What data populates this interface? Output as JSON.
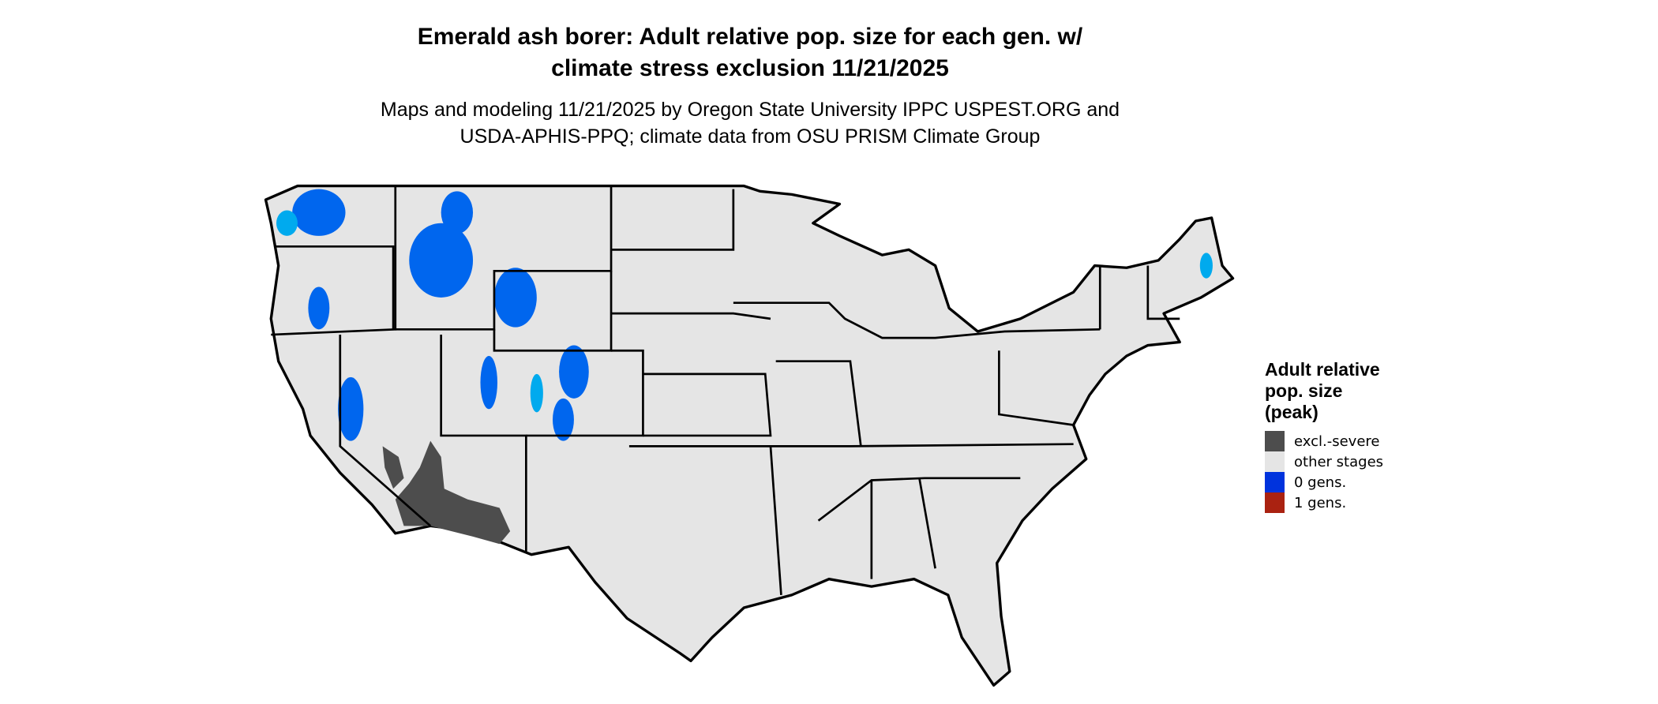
{
  "title": {
    "line1": "Emerald ash borer: Adult relative pop. size for each gen. w/",
    "line2": "climate stress exclusion 11/21/2025"
  },
  "subtitle": {
    "line1": "Maps and modeling 11/21/2025 by Oregon State University IPPC USPEST.ORG and",
    "line2": "USDA-APHIS-PPQ; climate data from OSU PRISM Climate Group"
  },
  "map": {
    "region": "Contiguous United States",
    "base_color": "#e5e5e5",
    "border_color": "#000000"
  },
  "legend": {
    "title_lines": [
      "Adult relative",
      "pop. size",
      "(peak)"
    ],
    "items": [
      {
        "label": "excl.-severe",
        "color": "#4d4d4d"
      },
      {
        "label": "other stages",
        "color": "#e5e5e5"
      },
      {
        "label": "0 gens.",
        "color": "#0033dd"
      },
      {
        "label": "1 gens.",
        "color": "#aa2211"
      }
    ]
  }
}
